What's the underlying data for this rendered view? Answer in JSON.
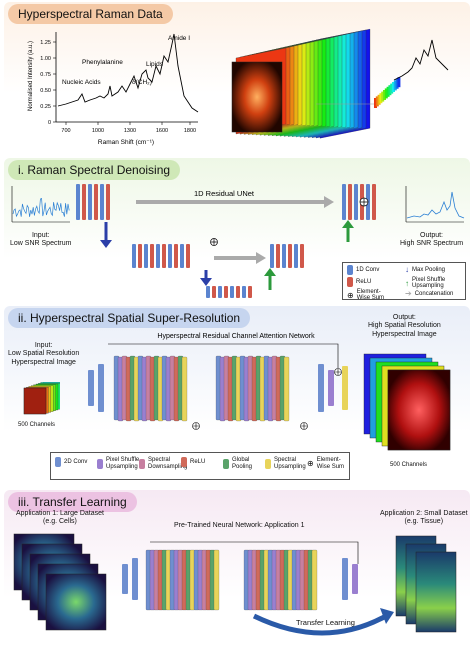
{
  "sections": [
    {
      "title": "Hyperspectral Raman Data"
    },
    {
      "title": "i. Raman Spectral Denoising"
    },
    {
      "title": "ii. Hyperspectral Spatial Super-Resolution"
    },
    {
      "title": "iii. Transfer Learning"
    }
  ],
  "raman_plot": {
    "ylabel": "Normalised Intensity (a.u.)",
    "xlabel": "Raman Shift (cm⁻¹)",
    "yticks": [
      "0",
      "0.25",
      "0.50",
      "0.75",
      "1.00",
      "1.25"
    ],
    "xticks": [
      "700",
      "1000",
      "1300",
      "1600",
      "1800"
    ],
    "peaks": [
      "Nucleic Acids",
      "Phenylalanine",
      "δ(CH₂)",
      "Lipids",
      "Amide I"
    ]
  },
  "denoise": {
    "network_label": "1D Residual UNet",
    "input_label": "Input:\nLow SNR Spectrum",
    "output_label": "Output:\nHigh SNR Spectrum",
    "legend": {
      "conv": "1D Conv",
      "relu": "ReLU",
      "sum": "Element-\nWise Sum",
      "maxpool": "Max Pooling",
      "upsample": "Pixel Shuffle\nUpsampling",
      "concat": "Concatenation"
    }
  },
  "superres": {
    "network_label": "Hyperspectral Residual Channel Attention Network",
    "input_label": "Input:\nLow Spatial Resolution\nHyperspectral Image",
    "output_label": "Output:\nHigh Spatial Resolution\nHyperspectral Image",
    "input_channels": "500 Channels",
    "output_channels": "500 Channels",
    "legend": [
      "2D Conv",
      "Pixel Shuffle\nUpsampling",
      "Spectral\nDownsampling",
      "ReLU",
      "Global\nPooling",
      "Spectral\nUpsampling",
      "Element-\nWise Sum"
    ],
    "legend_colors": [
      "#6f8fd0",
      "#9a7fd0",
      "#c77fa0",
      "#d06a5a",
      "#5aa36a",
      "#e8d45a",
      "#ffffff"
    ]
  },
  "transfer": {
    "app1_label": "Application 1: Large Dataset\n(e.g. Cells)",
    "app2_label": "Application 2: Small Dataset\n(e.g. Tissue)",
    "network_label": "Pre-Trained Neural Network: Application 1",
    "arrow_label": "Transfer Learning"
  }
}
